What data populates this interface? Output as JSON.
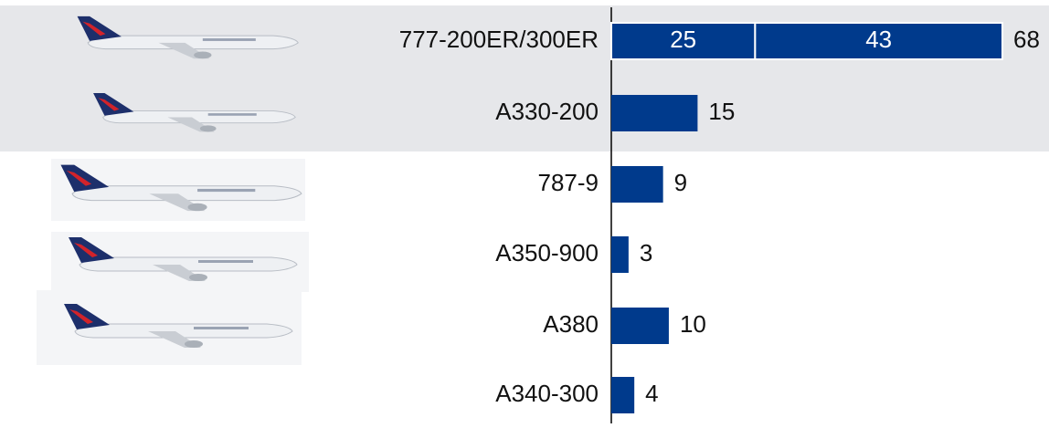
{
  "chart_data": {
    "type": "stacked-bar",
    "orientation": "horizontal",
    "categories": [
      "777-200ER/300ER",
      "A330-200",
      "787-9",
      "A350-900",
      "A380",
      "A340-300"
    ],
    "series": [
      {
        "color": "#003a8c",
        "values": [
          25,
          15,
          9,
          3,
          10,
          4
        ]
      },
      {
        "color": "#003a8c",
        "values": [
          43,
          null,
          null,
          null,
          null,
          null
        ]
      }
    ],
    "totals": [
      68,
      15,
      9,
      3,
      10,
      4
    ]
  }
}
